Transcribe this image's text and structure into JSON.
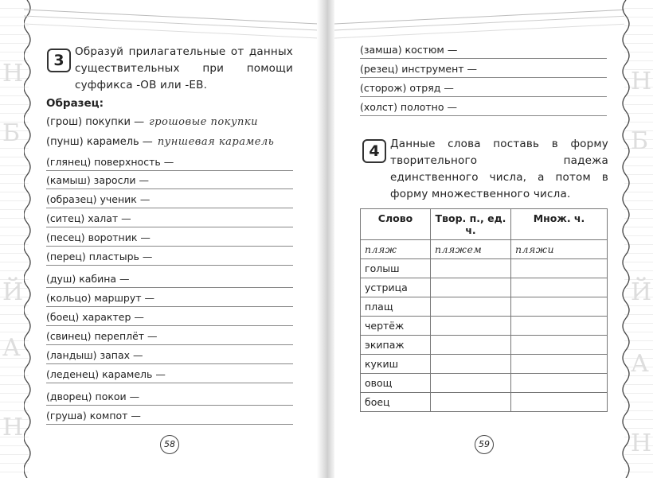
{
  "left_page": {
    "task_number": "3",
    "task_text": "Образуй прилагательные от данных существительных при помощи суффикса -ОВ или -ЕВ.",
    "example_label": "Образец:",
    "examples": [
      {
        "given": "(грош) покупки —",
        "answer": "грошовые покупки"
      },
      {
        "given": "(пунш) карамель —",
        "answer": "пуншевая карамель"
      }
    ],
    "items": [
      "(глянец) поверхность —",
      "(камыш) заросли —",
      "(образец) ученик —",
      "(ситец) халат —",
      "(песец) воротник —",
      "(перец) пластырь —",
      "(душ) кабина —",
      "(кольцо) маршрут —",
      "(боец) характер —",
      "(свинец) переплёт —",
      "(ландыш) запах —",
      "(леденец) карамель —",
      "(дворец) покои —",
      "(груша) компот —"
    ],
    "page_number": "58"
  },
  "right_page": {
    "items": [
      "(замша) костюм —",
      "(резец) инструмент —",
      "(сторож) отряд —",
      "(холст) полотно —"
    ],
    "task_number": "4",
    "task_text": "Данные слова поставь в форму творительного падежа единственного числа, а потом в форму множественного числа.",
    "table": {
      "headers": [
        "Слово",
        "Твор. п., ед. ч.",
        "Множ. ч."
      ],
      "example_row": [
        "пляж",
        "пляжем",
        "пляжи"
      ],
      "words": [
        "голыш",
        "устрица",
        "плащ",
        "чертёж",
        "экипаж",
        "кукиш",
        "овощ",
        "боец"
      ]
    },
    "page_number": "59"
  }
}
